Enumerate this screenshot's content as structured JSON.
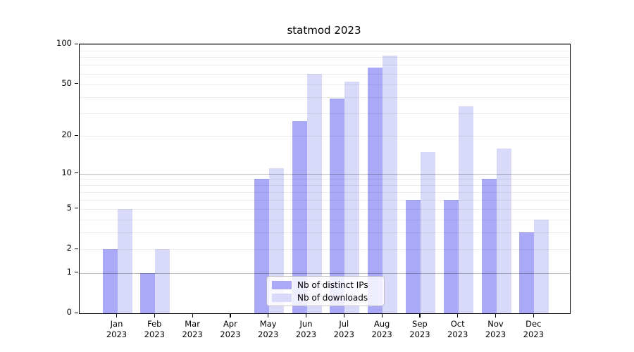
{
  "chart_data": {
    "type": "bar",
    "title": "statmod 2023",
    "xlabel": "",
    "ylabel": "",
    "yscale": "log1p",
    "ylim": [
      0,
      100
    ],
    "grid": "on",
    "legend_position": "lower center",
    "categories": [
      {
        "month": "Jan",
        "year": "2023"
      },
      {
        "month": "Feb",
        "year": "2023"
      },
      {
        "month": "Mar",
        "year": "2023"
      },
      {
        "month": "Apr",
        "year": "2023"
      },
      {
        "month": "May",
        "year": "2023"
      },
      {
        "month": "Jun",
        "year": "2023"
      },
      {
        "month": "Jul",
        "year": "2023"
      },
      {
        "month": "Aug",
        "year": "2023"
      },
      {
        "month": "Sep",
        "year": "2023"
      },
      {
        "month": "Oct",
        "year": "2023"
      },
      {
        "month": "Nov",
        "year": "2023"
      },
      {
        "month": "Dec",
        "year": "2023"
      }
    ],
    "series": [
      {
        "name": "Nb of distinct IPs",
        "color": "#a9a9f7",
        "values": [
          2,
          1,
          0,
          0,
          9,
          26,
          39,
          67,
          6,
          6,
          9,
          3
        ]
      },
      {
        "name": "Nb of downloads",
        "color": "#d9d9fa",
        "values": [
          5,
          2,
          0,
          0,
          11,
          60,
          52,
          82,
          15,
          34,
          16,
          4
        ]
      }
    ],
    "yticks": [
      0,
      1,
      2,
      5,
      10,
      20,
      50,
      100
    ],
    "grid_major_values": [
      1,
      10,
      100
    ],
    "grid_minor_values": [
      2,
      3,
      4,
      5,
      6,
      7,
      8,
      9,
      20,
      30,
      40,
      50,
      60,
      70,
      80,
      90
    ],
    "axis_color": "#000000",
    "background_color": "#ffffff"
  }
}
